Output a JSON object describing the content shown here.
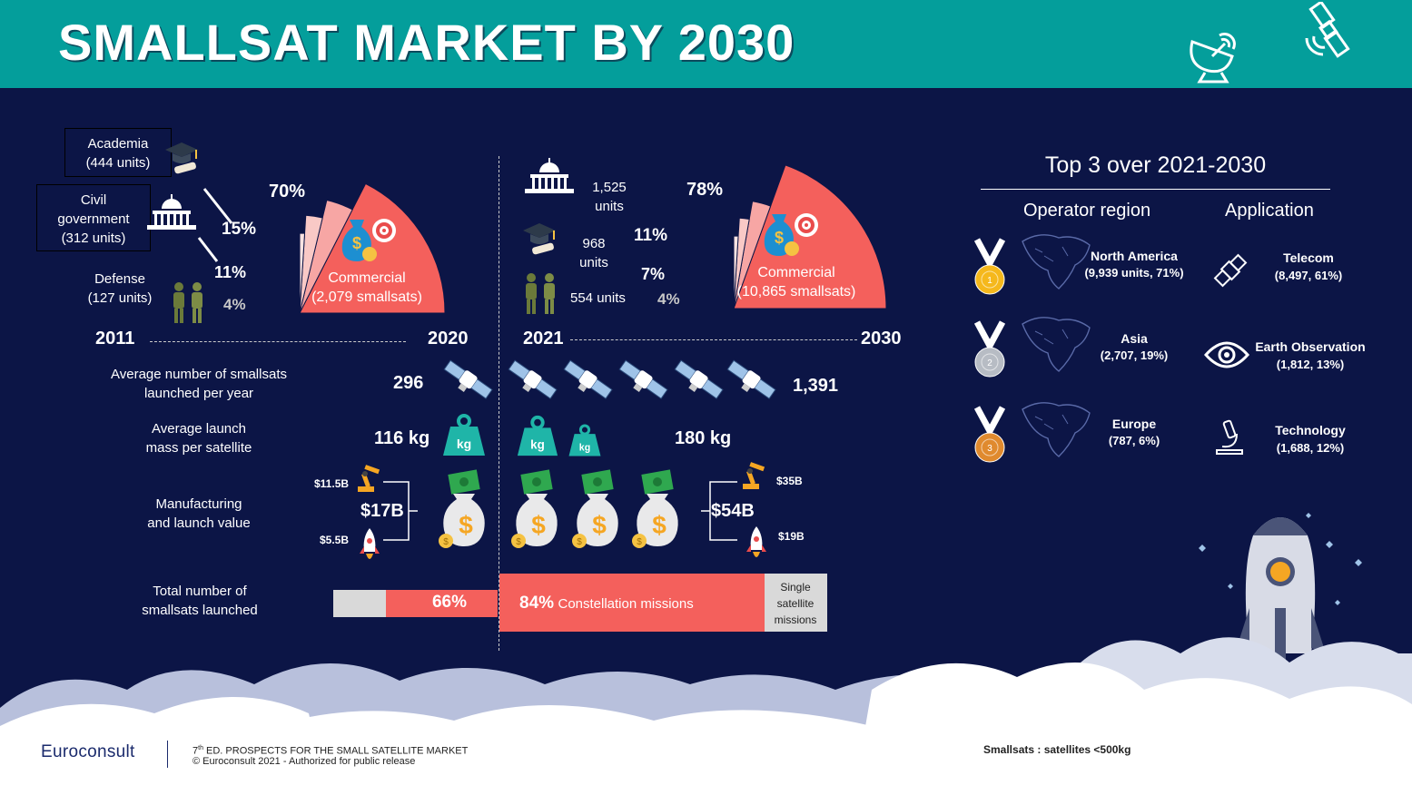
{
  "title": "SMALLSAT MARKET BY 2030",
  "colors": {
    "teal": "#049e9b",
    "navy": "#0c1546",
    "coral": "#f4605c",
    "pink": "#f7a6a4",
    "lightpink": "#f9c9c6",
    "grey": "#d9d9d9"
  },
  "left": {
    "start_year": "2011",
    "end_year": "2020",
    "academia": {
      "name": "Academia",
      "units": "(444 units)",
      "pct": "15%",
      "share": 15
    },
    "civil": {
      "line1": "Civil",
      "line2": "government",
      "units": "(312 units)",
      "pct": "11%",
      "share": 11
    },
    "defense": {
      "name": "Defense",
      "units": "(127 units)",
      "pct": "4%",
      "share": 4
    },
    "commercial": {
      "name": "Commercial",
      "units": "(2,079 smallsats)",
      "pct": "70%",
      "share": 70
    }
  },
  "right": {
    "start_year": "2021",
    "end_year": "2030",
    "civil": {
      "line1": "1,525",
      "line2": "units",
      "pct": "11%",
      "share": 11
    },
    "academia": {
      "line1": "968",
      "line2": "units",
      "pct": "7%",
      "share": 7
    },
    "defense": {
      "label": "554 units",
      "pct": "4%",
      "share": 4
    },
    "commercial": {
      "name": "Commercial",
      "units": "(10,865 smallsats)",
      "pct": "78%",
      "share": 78
    }
  },
  "metrics": {
    "launched_label_1": "Average number of smallsats",
    "launched_label_2": "launched per year",
    "launched_2020": "296",
    "launched_2030": "1,391",
    "mass_label_1": "Average launch",
    "mass_label_2": "mass per satellite",
    "mass_2020": "116 kg",
    "mass_2030": "180 kg",
    "kg": "kg",
    "value_label_1": "Manufacturing",
    "value_label_2": "and launch value",
    "value_2020": "$17B",
    "value_2020_manuf": "$11.5B",
    "value_2020_launch": "$5.5B",
    "value_2030": "$54B",
    "value_2030_manuf": "$35B",
    "value_2030_launch": "$19B",
    "total_label_1": "Total number of",
    "total_label_2": "smallsats launched",
    "total_2020_pct": "66%",
    "total_2020_share": 66,
    "total_2030_pct": "84%",
    "total_2030_share": 84,
    "total_2030_text": "Constellation missions",
    "single_1": "Single",
    "single_2": "satellite",
    "single_3": "missions"
  },
  "top3": {
    "title": "Top 3 over 2021-2030",
    "region_header": "Operator region",
    "app_header": "Application",
    "regions": [
      {
        "name": "North America",
        "detail": "(9,939 units, 71%)",
        "medal": "gold"
      },
      {
        "name": "Asia",
        "detail": "(2,707, 19%)",
        "medal": "silver"
      },
      {
        "name": "Europe",
        "detail": "(787, 6%)",
        "medal": "bronze"
      }
    ],
    "apps": [
      {
        "name": "Telecom",
        "detail": "(8,497, 61%)",
        "icon": "satellite-icon"
      },
      {
        "name": "Earth Observation",
        "detail": "(1,812, 13%)",
        "icon": "eye-icon"
      },
      {
        "name": "Technology",
        "detail": "(1,688, 12%)",
        "icon": "microscope-icon"
      }
    ]
  },
  "footer": {
    "logo": "Euroconsult",
    "edition_sup": "th",
    "edition_num": "7",
    "edition_text": "ED. PROSPECTS FOR THE SMALL SATELLITE MARKET",
    "copyright": "© Euroconsult 2021 - Authorized for public release",
    "note": "Smallsats : satellites <500kg"
  }
}
